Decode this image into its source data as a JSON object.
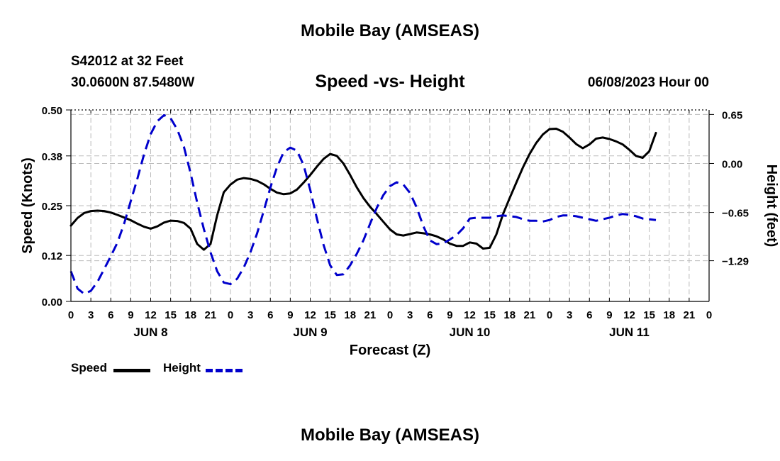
{
  "page": {
    "title": "Mobile Bay (AMSEAS)",
    "station": "S42012 at 32 Feet",
    "coords": "30.0600N  87.5480W",
    "chart_title": "Speed -vs- Height",
    "datetime": "06/08/2023 Hour 00",
    "footer_title": "Mobile Bay (AMSEAS)"
  },
  "colors": {
    "speed": "#000000",
    "height": "#0000cc",
    "grid": "#bbbbbb"
  },
  "legend": {
    "speed_label": "Speed",
    "height_label": "Height"
  },
  "chart_data": {
    "type": "line",
    "title": "Speed -vs- Height",
    "xlabel": "Forecast (Z)",
    "ylabel": "Speed (Knots)",
    "y2label": "Height (feet)",
    "xlim": [
      0,
      96
    ],
    "ylim": [
      0,
      0.5
    ],
    "y2lim": [
      -1.83,
      0.71
    ],
    "grid": true,
    "x_tick_labels": [
      "0",
      "3",
      "6",
      "9",
      "12",
      "15",
      "18",
      "21",
      "0",
      "3",
      "6",
      "9",
      "12",
      "15",
      "18",
      "21",
      "0",
      "3",
      "6",
      "9",
      "12",
      "15",
      "18",
      "21",
      "0",
      "3",
      "6",
      "9",
      "12",
      "15",
      "18",
      "21",
      "0"
    ],
    "day_labels": [
      {
        "label": "JUN 8",
        "hour": 12
      },
      {
        "label": "JUN 9",
        "hour": 36
      },
      {
        "label": "JUN 10",
        "hour": 60
      },
      {
        "label": "JUN 11",
        "hour": 84
      }
    ],
    "y_ticks": [
      0.0,
      0.12,
      0.25,
      0.38,
      0.5
    ],
    "y_tick_labels": [
      "0.00",
      "0.12",
      "0.25",
      "0.38",
      "0.50"
    ],
    "y2_ticks": [
      -1.29,
      -0.65,
      0.0,
      0.65
    ],
    "y2_tick_labels": [
      "−1.29",
      "−0.65",
      "0.00",
      "0.65"
    ],
    "series": [
      {
        "name": "Speed",
        "axis": "left",
        "style": "solid",
        "points": [
          [
            0,
            0.198
          ],
          [
            1,
            0.218
          ],
          [
            2,
            0.231
          ],
          [
            3,
            0.236
          ],
          [
            4,
            0.237
          ],
          [
            5,
            0.236
          ],
          [
            6,
            0.232
          ],
          [
            7,
            0.226
          ],
          [
            8,
            0.219
          ],
          [
            9,
            0.212
          ],
          [
            10,
            0.203
          ],
          [
            11,
            0.195
          ],
          [
            12,
            0.19
          ],
          [
            13,
            0.196
          ],
          [
            14,
            0.206
          ],
          [
            15,
            0.211
          ],
          [
            16,
            0.21
          ],
          [
            17,
            0.205
          ],
          [
            18,
            0.19
          ],
          [
            19,
            0.15
          ],
          [
            20,
            0.135
          ],
          [
            21,
            0.15
          ],
          [
            22,
            0.225
          ],
          [
            23,
            0.285
          ],
          [
            24,
            0.305
          ],
          [
            25,
            0.318
          ],
          [
            26,
            0.322
          ],
          [
            27,
            0.32
          ],
          [
            28,
            0.315
          ],
          [
            29,
            0.306
          ],
          [
            30,
            0.294
          ],
          [
            31,
            0.284
          ],
          [
            32,
            0.28
          ],
          [
            33,
            0.282
          ],
          [
            34,
            0.292
          ],
          [
            35,
            0.31
          ],
          [
            36,
            0.33
          ],
          [
            37,
            0.352
          ],
          [
            38,
            0.372
          ],
          [
            39,
            0.385
          ],
          [
            40,
            0.38
          ],
          [
            41,
            0.36
          ],
          [
            42,
            0.33
          ],
          [
            43,
            0.298
          ],
          [
            44,
            0.27
          ],
          [
            45,
            0.247
          ],
          [
            46,
            0.228
          ],
          [
            47,
            0.208
          ],
          [
            48,
            0.188
          ],
          [
            49,
            0.175
          ],
          [
            50,
            0.172
          ],
          [
            51,
            0.176
          ],
          [
            52,
            0.18
          ],
          [
            53,
            0.178
          ],
          [
            54,
            0.175
          ],
          [
            55,
            0.17
          ],
          [
            56,
            0.162
          ],
          [
            57,
            0.151
          ],
          [
            58,
            0.145
          ],
          [
            59,
            0.145
          ],
          [
            60,
            0.154
          ],
          [
            61,
            0.151
          ],
          [
            62,
            0.138
          ],
          [
            63,
            0.14
          ],
          [
            64,
            0.175
          ],
          [
            65,
            0.228
          ],
          [
            66,
            0.27
          ],
          [
            67,
            0.31
          ],
          [
            68,
            0.35
          ],
          [
            69,
            0.385
          ],
          [
            70,
            0.414
          ],
          [
            71,
            0.436
          ],
          [
            72,
            0.45
          ],
          [
            73,
            0.451
          ],
          [
            74,
            0.443
          ],
          [
            75,
            0.428
          ],
          [
            76,
            0.411
          ],
          [
            77,
            0.4
          ],
          [
            78,
            0.41
          ],
          [
            79,
            0.425
          ],
          [
            80,
            0.428
          ],
          [
            81,
            0.424
          ],
          [
            82,
            0.418
          ],
          [
            83,
            0.41
          ],
          [
            84,
            0.396
          ],
          [
            85,
            0.38
          ],
          [
            86,
            0.375
          ],
          [
            87,
            0.392
          ],
          [
            88,
            0.44
          ]
        ]
      },
      {
        "name": "Height",
        "axis": "right",
        "style": "dashed",
        "points": [
          [
            0,
            -1.43
          ],
          [
            1,
            -1.66
          ],
          [
            2,
            -1.73
          ],
          [
            3,
            -1.69
          ],
          [
            4,
            -1.57
          ],
          [
            5,
            -1.4
          ],
          [
            6,
            -1.23
          ],
          [
            7,
            -1.05
          ],
          [
            8,
            -0.8
          ],
          [
            9,
            -0.5
          ],
          [
            10,
            -0.2
          ],
          [
            11,
            0.12
          ],
          [
            12,
            0.39
          ],
          [
            13,
            0.56
          ],
          [
            14,
            0.64
          ],
          [
            15,
            0.6
          ],
          [
            16,
            0.45
          ],
          [
            17,
            0.22
          ],
          [
            18,
            -0.13
          ],
          [
            19,
            -0.52
          ],
          [
            20,
            -0.87
          ],
          [
            21,
            -1.18
          ],
          [
            22,
            -1.43
          ],
          [
            23,
            -1.58
          ],
          [
            24,
            -1.6
          ],
          [
            25,
            -1.53
          ],
          [
            26,
            -1.38
          ],
          [
            27,
            -1.18
          ],
          [
            28,
            -0.93
          ],
          [
            29,
            -0.63
          ],
          [
            30,
            -0.32
          ],
          [
            31,
            -0.05
          ],
          [
            32,
            0.15
          ],
          [
            33,
            0.21
          ],
          [
            34,
            0.17
          ],
          [
            35,
            -0.02
          ],
          [
            36,
            -0.35
          ],
          [
            37,
            -0.73
          ],
          [
            38,
            -1.08
          ],
          [
            39,
            -1.35
          ],
          [
            40,
            -1.48
          ],
          [
            41,
            -1.47
          ],
          [
            42,
            -1.35
          ],
          [
            43,
            -1.2
          ],
          [
            44,
            -1.02
          ],
          [
            45,
            -0.8
          ],
          [
            46,
            -0.59
          ],
          [
            47,
            -0.42
          ],
          [
            48,
            -0.3
          ],
          [
            49,
            -0.25
          ],
          [
            50,
            -0.28
          ],
          [
            51,
            -0.39
          ],
          [
            52,
            -0.58
          ],
          [
            53,
            -0.83
          ],
          [
            54,
            -1.02
          ],
          [
            55,
            -1.07
          ],
          [
            56,
            -1.06
          ],
          [
            57,
            -1.01
          ],
          [
            58,
            -0.95
          ],
          [
            59,
            -0.86
          ],
          [
            60,
            -0.73
          ],
          [
            61,
            -0.72
          ],
          [
            62,
            -0.72
          ],
          [
            63,
            -0.72
          ],
          [
            64,
            -0.7
          ],
          [
            65,
            -0.69
          ],
          [
            66,
            -0.7
          ],
          [
            67,
            -0.71
          ],
          [
            68,
            -0.74
          ],
          [
            69,
            -0.76
          ],
          [
            70,
            -0.76
          ],
          [
            71,
            -0.77
          ],
          [
            72,
            -0.75
          ],
          [
            73,
            -0.71
          ],
          [
            74,
            -0.69
          ],
          [
            75,
            -0.69
          ],
          [
            76,
            -0.7
          ],
          [
            77,
            -0.72
          ],
          [
            78,
            -0.74
          ],
          [
            79,
            -0.76
          ],
          [
            80,
            -0.74
          ],
          [
            81,
            -0.72
          ],
          [
            82,
            -0.69
          ],
          [
            83,
            -0.67
          ],
          [
            84,
            -0.68
          ],
          [
            85,
            -0.7
          ],
          [
            86,
            -0.73
          ],
          [
            87,
            -0.74
          ],
          [
            88,
            -0.75
          ]
        ]
      }
    ]
  }
}
